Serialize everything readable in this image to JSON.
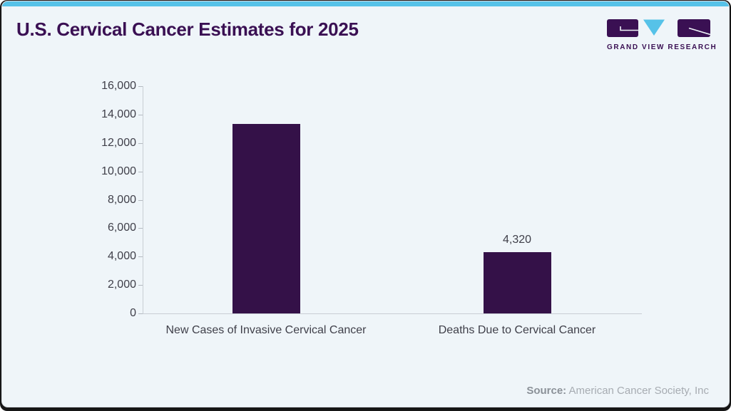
{
  "header": {
    "title": "U.S. Cervical Cancer Estimates for 2025",
    "logo_text": "GRAND VIEW RESEARCH"
  },
  "colors": {
    "accent_blue": "#56c2e8",
    "brand_purple": "#3a1053",
    "bar_fill": "#341148",
    "card_bg": "#eff5f9",
    "axis_line": "#c9ced4",
    "label_gray": "#3f3f49"
  },
  "chart_data": {
    "type": "bar",
    "title": "U.S. Cervical Cancer Estimates for 2025",
    "categories": [
      "New Cases of Invasive Cervical Cancer",
      "Deaths Due to Cervical Cancer"
    ],
    "values": [
      13360,
      4320
    ],
    "bar_labels": [
      null,
      "4,320"
    ],
    "xlabel": "",
    "ylabel": "",
    "ylim": [
      0,
      16000
    ],
    "ytick_step": 2000,
    "ytick_labels": [
      "0",
      "2,000",
      "4,000",
      "6,000",
      "8,000",
      "10,000",
      "12,000",
      "14,000",
      "16,000"
    ],
    "grid": false,
    "legend": false
  },
  "footer": {
    "source_label": "Source:",
    "source_text": " American Cancer Society, Inc"
  }
}
